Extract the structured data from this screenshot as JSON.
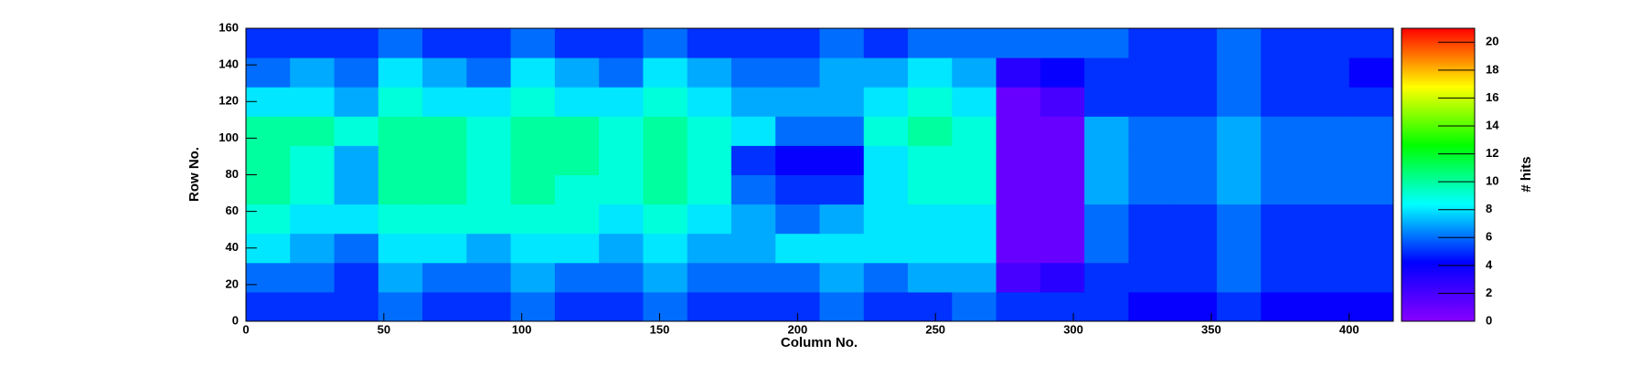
{
  "chart_data": {
    "type": "heatmap",
    "x_label": "Column No.",
    "y_label": "Row No.",
    "z_label": "# hits",
    "xlim": [
      0,
      416
    ],
    "ylim": [
      0,
      160
    ],
    "zlim": [
      0,
      21
    ],
    "xticks": [
      0,
      50,
      100,
      150,
      200,
      250,
      300,
      350,
      400
    ],
    "yticks": [
      0,
      20,
      40,
      60,
      80,
      100,
      120,
      140,
      160
    ],
    "zticks": [
      0,
      2,
      4,
      6,
      8,
      10,
      12,
      14,
      16,
      18,
      20
    ],
    "x_bins": [
      0,
      16,
      32,
      48,
      64,
      80,
      96,
      112,
      128,
      144,
      160,
      176,
      192,
      208,
      224,
      240,
      256,
      272,
      288,
      304,
      320,
      336,
      352,
      368,
      384,
      400,
      416
    ],
    "y_bins": [
      0,
      16,
      32,
      48,
      64,
      80,
      96,
      112,
      128,
      144,
      160
    ],
    "colorscale": [
      "#8800ff",
      "#0000ff",
      "#00ffff",
      "#00ff00",
      "#ffff00",
      "#ff0000"
    ],
    "values": [
      [
        5,
        5,
        5,
        6,
        5,
        5,
        6,
        5,
        5,
        6,
        5,
        5,
        5,
        6,
        5,
        5,
        6,
        5,
        5,
        5,
        4,
        4,
        5,
        4,
        4,
        4
      ],
      [
        6,
        6,
        5,
        7,
        6,
        6,
        7,
        6,
        6,
        7,
        6,
        6,
        6,
        7,
        6,
        7,
        7,
        2,
        3,
        5,
        5,
        5,
        6,
        5,
        5,
        5
      ],
      [
        8,
        7,
        6,
        8,
        8,
        7,
        8,
        8,
        7,
        8,
        7,
        7,
        8,
        8,
        8,
        8,
        8,
        1,
        1,
        6,
        5,
        5,
        6,
        5,
        5,
        5
      ],
      [
        9,
        8,
        8,
        9,
        9,
        9,
        9,
        9,
        8,
        9,
        8,
        7,
        6,
        7,
        8,
        8,
        8,
        1,
        1,
        6,
        5,
        5,
        6,
        5,
        5,
        5
      ],
      [
        10,
        9,
        7,
        10,
        10,
        9,
        10,
        9,
        9,
        10,
        9,
        6,
        5,
        5,
        8,
        9,
        9,
        1,
        1,
        7,
        6,
        6,
        7,
        6,
        6,
        6
      ],
      [
        10,
        9,
        7,
        10,
        10,
        9,
        10,
        10,
        9,
        10,
        9,
        5,
        4,
        4,
        8,
        9,
        9,
        1,
        1,
        7,
        6,
        6,
        7,
        6,
        6,
        6
      ],
      [
        10,
        10,
        9,
        10,
        10,
        9,
        10,
        10,
        9,
        10,
        9,
        8,
        6,
        6,
        9,
        10,
        9,
        1,
        1,
        7,
        6,
        6,
        7,
        6,
        6,
        6
      ],
      [
        8,
        8,
        7,
        9,
        8,
        8,
        9,
        8,
        8,
        9,
        8,
        7,
        7,
        7,
        8,
        9,
        8,
        1,
        2,
        5,
        5,
        5,
        6,
        5,
        5,
        5
      ],
      [
        6,
        7,
        6,
        8,
        7,
        6,
        8,
        7,
        6,
        8,
        7,
        6,
        6,
        7,
        7,
        8,
        7,
        3,
        4,
        5,
        5,
        5,
        6,
        5,
        5,
        4
      ],
      [
        5,
        5,
        5,
        6,
        5,
        5,
        6,
        5,
        5,
        6,
        5,
        5,
        5,
        6,
        5,
        6,
        6,
        6,
        6,
        6,
        5,
        5,
        6,
        5,
        5,
        5
      ]
    ]
  }
}
